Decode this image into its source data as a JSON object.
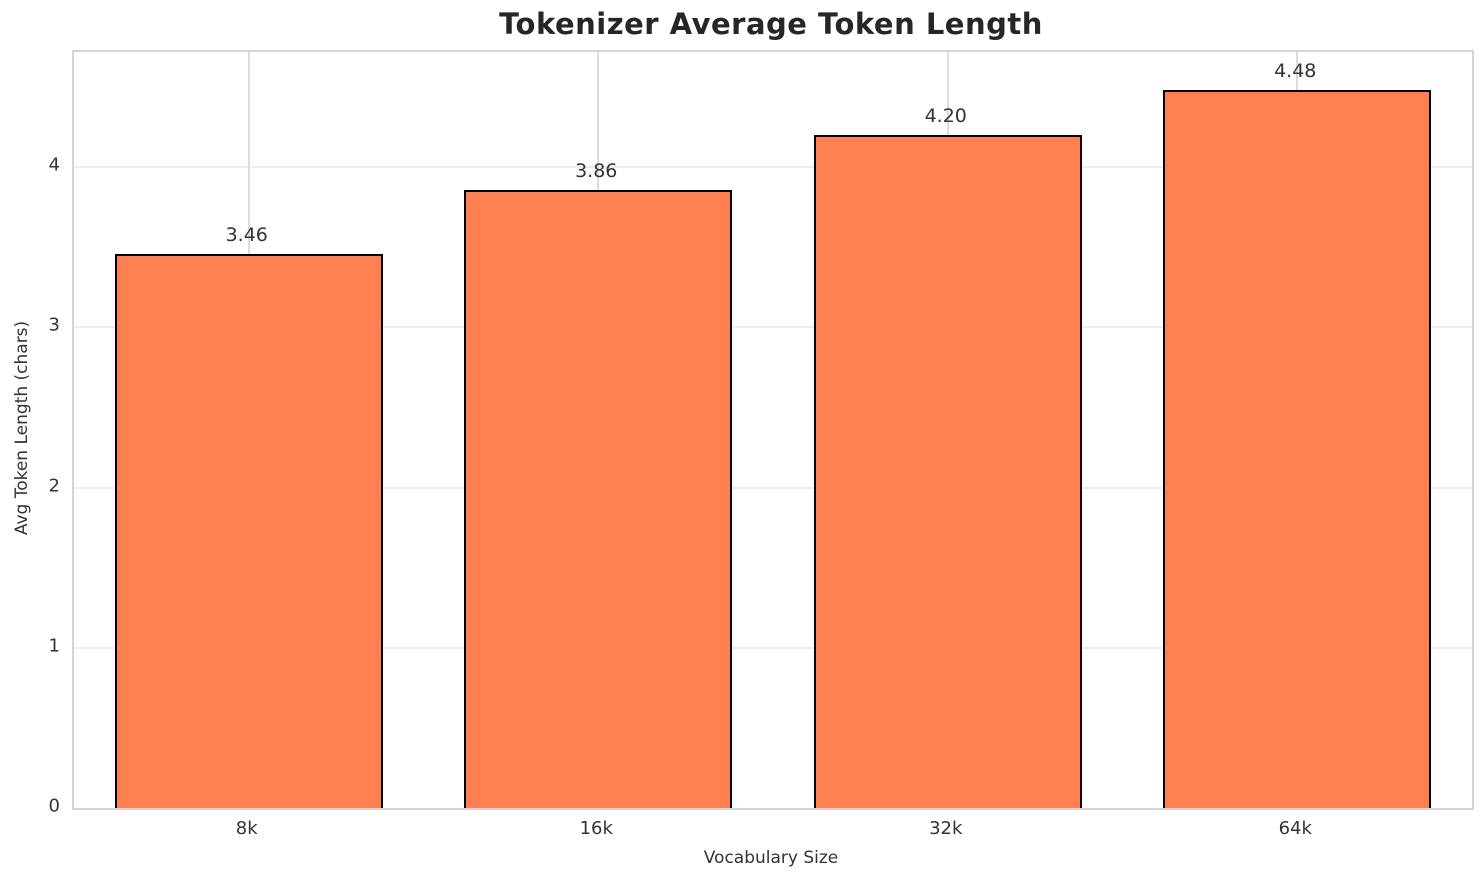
{
  "chart_data": {
    "type": "bar",
    "title": "Tokenizer Average Token Length",
    "xlabel": "Vocabulary Size",
    "ylabel": "Avg Token Length (chars)",
    "categories": [
      "8k",
      "16k",
      "32k",
      "64k"
    ],
    "values": [
      3.46,
      3.86,
      4.2,
      4.48
    ],
    "value_labels": [
      "3.46",
      "3.86",
      "4.20",
      "4.48"
    ],
    "yticks": [
      0,
      1,
      2,
      3,
      4
    ],
    "ytick_labels": [
      "0",
      "1",
      "2",
      "3",
      "4"
    ],
    "ylim": [
      0,
      4.72
    ],
    "grid": true,
    "legend": "none",
    "bar_color": "#FF7F50",
    "bar_edge_color": "#000000",
    "title_color": "#262626",
    "tick_label_color": "#333333",
    "background_color": "#ffffff"
  }
}
